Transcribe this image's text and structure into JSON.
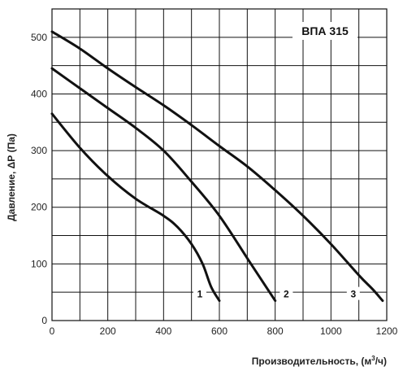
{
  "chart_data": {
    "type": "line",
    "title": "ВПА 315",
    "xlabel_main": "Производительность, (м",
    "xlabel_sup": "3",
    "xlabel_end": "/ч)",
    "ylabel": "Давление, ΔР (Па)",
    "xlim": [
      0,
      1200
    ],
    "ylim": [
      0,
      550
    ],
    "x_ticks": [
      "0",
      "200",
      "400",
      "600",
      "800",
      "1000",
      "1200"
    ],
    "y_ticks": [
      "0",
      "100",
      "200",
      "300",
      "400",
      "500"
    ],
    "grid": true,
    "series": [
      {
        "name": "1",
        "points": [
          [
            0,
            365
          ],
          [
            100,
            305
          ],
          [
            200,
            255
          ],
          [
            300,
            215
          ],
          [
            400,
            185
          ],
          [
            450,
            165
          ],
          [
            500,
            135
          ],
          [
            540,
            100
          ],
          [
            570,
            60
          ],
          [
            600,
            35
          ]
        ]
      },
      {
        "name": "2",
        "points": [
          [
            0,
            445
          ],
          [
            100,
            410
          ],
          [
            200,
            375
          ],
          [
            300,
            340
          ],
          [
            400,
            300
          ],
          [
            500,
            245
          ],
          [
            600,
            185
          ],
          [
            700,
            110
          ],
          [
            760,
            65
          ],
          [
            800,
            35
          ]
        ]
      },
      {
        "name": "3",
        "points": [
          [
            0,
            510
          ],
          [
            100,
            480
          ],
          [
            200,
            445
          ],
          [
            300,
            412
          ],
          [
            400,
            380
          ],
          [
            500,
            345
          ],
          [
            600,
            308
          ],
          [
            700,
            272
          ],
          [
            800,
            230
          ],
          [
            900,
            185
          ],
          [
            1000,
            135
          ],
          [
            1100,
            80
          ],
          [
            1150,
            55
          ],
          [
            1185,
            35
          ]
        ]
      }
    ],
    "series_label_values": [
      {
        "x": 530,
        "y": 45
      },
      {
        "x": 840,
        "y": 45
      },
      {
        "x": 1080,
        "y": 45
      }
    ]
  }
}
